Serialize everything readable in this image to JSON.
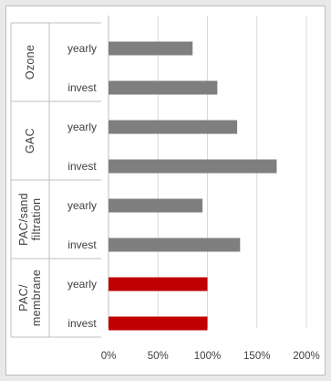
{
  "chart_data": {
    "type": "bar",
    "orientation": "horizontal",
    "groups": [
      {
        "name": "Ozone",
        "bars": [
          {
            "label": "yearly",
            "value": 85
          },
          {
            "label": "invest",
            "value": 110
          }
        ]
      },
      {
        "name": "GAC",
        "bars": [
          {
            "label": "yearly",
            "value": 130
          },
          {
            "label": "invest",
            "value": 170
          }
        ]
      },
      {
        "name": "PAC/sand filtration",
        "name_lines": [
          "PAC/sand",
          "filtration"
        ],
        "bars": [
          {
            "label": "yearly",
            "value": 95
          },
          {
            "label": "invest",
            "value": 133
          }
        ]
      },
      {
        "name": "PAC/ membrane",
        "name_lines": [
          "PAC/",
          "membrane"
        ],
        "bars": [
          {
            "label": "yearly",
            "value": 100
          },
          {
            "label": "invest",
            "value": 100
          }
        ]
      }
    ],
    "highlight_group": "PAC/ membrane",
    "xlim": [
      0,
      200
    ],
    "xticks": [
      0,
      50,
      100,
      150,
      200
    ],
    "xtick_labels": [
      "0%",
      "50%",
      "100%",
      "150%",
      "200%"
    ],
    "x_grid": true,
    "colors": {
      "default": "#7f7f7f",
      "highlight": "#c00000",
      "grid": "#d9d9d9",
      "axis": "#bfbfbf",
      "text": "#404040"
    }
  }
}
